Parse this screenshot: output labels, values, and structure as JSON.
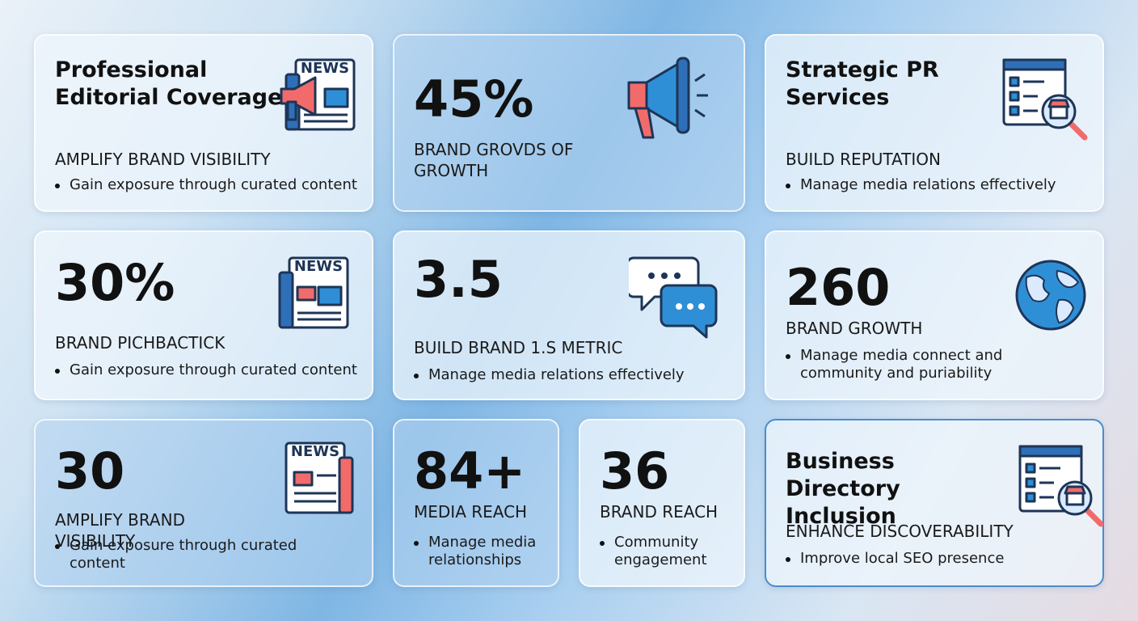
{
  "cards": [
    {
      "heading": "Professional Editorial Coverage",
      "icon_text": "NEWS",
      "label": "AMPLIFY BRAND VISIBILITY",
      "bullet": "Gain exposure through curated content"
    },
    {
      "heading": "45%",
      "label": "BRAND GROVDS OF GROWTH"
    },
    {
      "heading": "Strategic PR Services",
      "label": "BUILD REPUTATION",
      "bullet": "Manage media relations effectively"
    },
    {
      "heading": "30%",
      "icon_text": "NEWS",
      "label": "BRAND PICHBACTICK",
      "bullet": "Gain exposure through curated content"
    },
    {
      "heading": "3.5",
      "label": "BUILD BRAND 1.S METRIC",
      "bullet": "Manage media relations effectively"
    },
    {
      "heading": "260",
      "label": "BRAND GROWTH",
      "bullet": "Manage media connect and community and puriability"
    },
    {
      "heading": "30",
      "icon_text": "NEWS",
      "label": "AMPLIFY BRAND VISIBILITY",
      "bullet": "Gain exposure through curated content"
    },
    {
      "heading": "84+",
      "label": "MEDIA REACH",
      "bullet": "Manage media relationships"
    },
    {
      "heading": "36",
      "label": "BRAND REACH",
      "bullet": "Community engagement"
    },
    {
      "heading": "Business Directory Inclusion",
      "label": "ENHANCE DISCOVERABILITY",
      "bullet": "Improve local SEO presence"
    }
  ]
}
